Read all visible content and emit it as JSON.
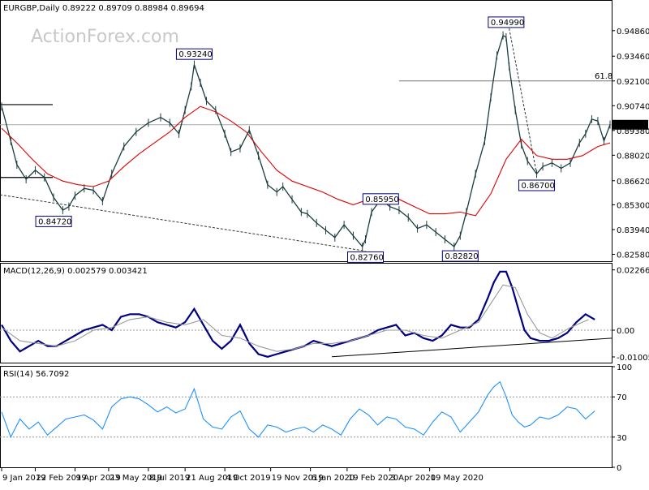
{
  "chart_data": [
    {
      "type": "line",
      "panel": "price",
      "symbol_header": "EURGBP,Daily  0.89222 0.89709 0.88984 0.89694",
      "watermark": "ActionForex.com",
      "y_range": [
        0.822,
        0.965
      ],
      "y_ticks": [
        "0.94860",
        "0.93460",
        "0.92100",
        "0.90740",
        "0.89380",
        "0.88020",
        "0.86620",
        "0.85300",
        "0.83940",
        "0.82580"
      ],
      "y_tick_values": [
        0.9486,
        0.9346,
        0.921,
        0.9074,
        0.8938,
        0.8802,
        0.8662,
        0.853,
        0.8394,
        0.8258
      ],
      "last_price_label": "0.89694",
      "last_price": 0.89694,
      "fib_label": "61.8",
      "fib_level": 0.921,
      "annotations": [
        {
          "text": "0.93240",
          "x": 63,
          "y": 0.9324
        },
        {
          "text": "0.94990",
          "x": 165,
          "y": 0.9499
        },
        {
          "text": "0.84720",
          "x": 17,
          "y": 0.8472
        },
        {
          "text": "0.85950",
          "x": 124,
          "y": 0.8595
        },
        {
          "text": "0.82760",
          "x": 119,
          "y": 0.8276
        },
        {
          "text": "0.82820",
          "x": 150,
          "y": 0.8282
        },
        {
          "text": "0.86700",
          "x": 175,
          "y": 0.867
        }
      ],
      "x_labels": [
        "9 Jan 2019",
        "22 Feb 2019",
        "9 Apr 2019",
        "23 May 2019",
        "8 Jul 2019",
        "21 Aug 2019",
        "4 Oct 2019",
        "19 Nov 2019",
        "6 Jan 2020",
        "19 Feb 2020",
        "3 Apr 2020",
        "19 May 2020"
      ],
      "x_label_index": [
        0,
        11,
        24,
        35,
        48,
        60,
        73,
        88,
        101,
        113,
        127,
        140
      ],
      "series": [
        {
          "name": "price",
          "color": "#1c3d3d",
          "x": [
            0,
            3,
            5,
            8,
            11,
            14,
            17,
            20,
            22,
            24,
            27,
            30,
            33,
            36,
            40,
            44,
            48,
            52,
            55,
            58,
            60,
            62,
            63,
            65,
            67,
            70,
            73,
            75,
            78,
            81,
            84,
            87,
            90,
            92,
            95,
            98,
            100,
            103,
            106,
            109,
            112,
            115,
            118,
            119,
            121,
            124,
            127,
            130,
            133,
            136,
            139,
            142,
            145,
            148,
            150,
            152,
            155,
            158,
            160,
            162,
            164,
            165,
            166,
            168,
            170,
            172,
            175,
            177,
            180,
            183,
            186,
            189,
            191,
            193,
            195,
            197,
            199
          ],
          "y": [
            0.907,
            0.888,
            0.875,
            0.867,
            0.872,
            0.868,
            0.857,
            0.85,
            0.852,
            0.858,
            0.862,
            0.861,
            0.855,
            0.87,
            0.885,
            0.893,
            0.898,
            0.901,
            0.898,
            0.892,
            0.905,
            0.918,
            0.93,
            0.92,
            0.91,
            0.905,
            0.892,
            0.882,
            0.884,
            0.894,
            0.88,
            0.864,
            0.86,
            0.863,
            0.856,
            0.849,
            0.848,
            0.843,
            0.839,
            0.835,
            0.842,
            0.836,
            0.83,
            0.834,
            0.849,
            0.856,
            0.852,
            0.85,
            0.846,
            0.84,
            0.842,
            0.838,
            0.834,
            0.83,
            0.836,
            0.849,
            0.87,
            0.888,
            0.912,
            0.935,
            0.946,
            0.945,
            0.929,
            0.905,
            0.886,
            0.877,
            0.87,
            0.874,
            0.876,
            0.873,
            0.876,
            0.887,
            0.892,
            0.9,
            0.899,
            0.888,
            0.897
          ]
        },
        {
          "name": "ma",
          "color": "#dd0000",
          "x": [
            0,
            5,
            10,
            15,
            20,
            25,
            30,
            35,
            40,
            45,
            50,
            55,
            60,
            65,
            70,
            75,
            80,
            85,
            90,
            95,
            100,
            105,
            110,
            115,
            120,
            125,
            130,
            135,
            140,
            145,
            150,
            155,
            160,
            165,
            170,
            175,
            180,
            185,
            190,
            195,
            199
          ],
          "y": [
            0.895,
            0.887,
            0.878,
            0.87,
            0.866,
            0.864,
            0.863,
            0.866,
            0.874,
            0.881,
            0.887,
            0.893,
            0.901,
            0.907,
            0.904,
            0.899,
            0.893,
            0.882,
            0.872,
            0.866,
            0.863,
            0.86,
            0.856,
            0.853,
            0.856,
            0.858,
            0.856,
            0.852,
            0.848,
            0.848,
            0.849,
            0.847,
            0.859,
            0.878,
            0.889,
            0.88,
            0.878,
            0.878,
            0.88,
            0.885,
            0.887
          ]
        }
      ]
    },
    {
      "type": "line",
      "panel": "macd",
      "header": "MACD(12,26,9) 0.002579 0.003421",
      "y_range": [
        -0.0122,
        0.025
      ],
      "y_ticks": [
        "0.022662",
        "0.00",
        "-0.010052"
      ],
      "y_tick_values": [
        0.022662,
        0.0,
        -0.010052
      ],
      "series": [
        {
          "name": "macd",
          "color": "#000080",
          "x": [
            0,
            3,
            6,
            9,
            12,
            15,
            18,
            21,
            24,
            27,
            30,
            33,
            36,
            39,
            42,
            45,
            48,
            51,
            54,
            57,
            60,
            63,
            66,
            69,
            72,
            75,
            78,
            81,
            84,
            87,
            90,
            93,
            96,
            99,
            102,
            105,
            108,
            111,
            114,
            117,
            120,
            123,
            126,
            129,
            132,
            135,
            138,
            141,
            144,
            147,
            150,
            153,
            156,
            159,
            161,
            163,
            165,
            167,
            169,
            171,
            173,
            176,
            179,
            182,
            185,
            188,
            191,
            194
          ],
          "y": [
            0.002,
            -0.004,
            -0.008,
            -0.006,
            -0.004,
            -0.006,
            -0.006,
            -0.004,
            -0.002,
            0.0,
            0.001,
            0.002,
            0.0,
            0.005,
            0.006,
            0.006,
            0.005,
            0.003,
            0.002,
            0.001,
            0.003,
            0.008,
            0.002,
            -0.004,
            -0.007,
            -0.004,
            0.002,
            -0.005,
            -0.009,
            -0.01,
            -0.009,
            -0.008,
            -0.007,
            -0.006,
            -0.004,
            -0.005,
            -0.006,
            -0.005,
            -0.004,
            -0.003,
            -0.002,
            0.0,
            0.001,
            0.002,
            -0.002,
            -0.001,
            -0.003,
            -0.004,
            -0.002,
            0.002,
            0.001,
            0.001,
            0.004,
            0.012,
            0.018,
            0.022,
            0.022,
            0.016,
            0.008,
            0.0,
            -0.003,
            -0.004,
            -0.004,
            -0.003,
            -0.001,
            0.003,
            0.006,
            0.004
          ]
        },
        {
          "name": "signal",
          "color": "#999999",
          "x": [
            0,
            6,
            12,
            18,
            24,
            30,
            36,
            42,
            48,
            54,
            60,
            66,
            72,
            78,
            84,
            90,
            96,
            102,
            108,
            114,
            120,
            126,
            132,
            138,
            144,
            150,
            156,
            160,
            164,
            168,
            172,
            176,
            180,
            186,
            192
          ],
          "y": [
            0.001,
            -0.004,
            -0.005,
            -0.006,
            -0.004,
            0.0,
            0.001,
            0.004,
            0.005,
            0.003,
            0.002,
            0.004,
            -0.002,
            -0.003,
            -0.006,
            -0.008,
            -0.007,
            -0.005,
            -0.005,
            -0.004,
            -0.002,
            0.0,
            0.0,
            -0.002,
            -0.003,
            0.0,
            0.003,
            0.01,
            0.017,
            0.016,
            0.006,
            -0.001,
            -0.003,
            0.001,
            0.004
          ]
        }
      ]
    },
    {
      "type": "line",
      "panel": "rsi",
      "header": "RSI(14) 56.7092",
      "y_range": [
        0,
        100
      ],
      "y_ticks": [
        "100",
        "70",
        "30",
        "0"
      ],
      "y_tick_values": [
        100,
        70,
        30,
        0
      ],
      "series": [
        {
          "name": "rsi",
          "color": "#1e90ff",
          "x": [
            0,
            3,
            6,
            9,
            12,
            15,
            18,
            21,
            24,
            27,
            30,
            33,
            36,
            39,
            42,
            45,
            48,
            51,
            54,
            57,
            60,
            63,
            66,
            69,
            72,
            75,
            78,
            81,
            84,
            87,
            90,
            93,
            96,
            99,
            102,
            105,
            108,
            111,
            114,
            117,
            120,
            123,
            126,
            129,
            132,
            135,
            138,
            141,
            144,
            147,
            150,
            153,
            156,
            159,
            161,
            163,
            165,
            167,
            169,
            171,
            173,
            176,
            179,
            182,
            185,
            188,
            191,
            194
          ],
          "y": [
            55,
            30,
            48,
            38,
            45,
            32,
            40,
            48,
            50,
            52,
            47,
            38,
            60,
            68,
            70,
            68,
            62,
            55,
            60,
            54,
            58,
            78,
            48,
            40,
            38,
            50,
            56,
            38,
            30,
            42,
            40,
            35,
            38,
            40,
            35,
            42,
            38,
            32,
            48,
            58,
            52,
            42,
            50,
            48,
            40,
            38,
            32,
            45,
            55,
            50,
            35,
            45,
            55,
            72,
            80,
            85,
            70,
            52,
            45,
            40,
            42,
            50,
            48,
            52,
            60,
            58,
            48,
            56
          ]
        }
      ]
    }
  ]
}
